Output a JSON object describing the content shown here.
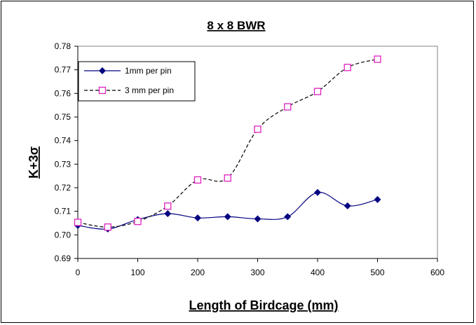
{
  "chart_data": {
    "type": "line",
    "title": "8 x 8 BWR",
    "xlabel": "Length of Birdcage (mm)",
    "ylabel": "K+3σ",
    "xlim": [
      0,
      600
    ],
    "ylim": [
      0.69,
      0.78
    ],
    "x_ticks": [
      "0",
      "100",
      "200",
      "300",
      "400",
      "500",
      "600"
    ],
    "y_ticks": [
      "0.69",
      "0.70",
      "0.71",
      "0.72",
      "0.73",
      "0.74",
      "0.75",
      "0.76",
      "0.77",
      "0.78"
    ],
    "x": [
      0,
      50,
      100,
      150,
      200,
      250,
      300,
      350,
      400,
      450,
      500
    ],
    "legend_position": "top-left",
    "grid": false,
    "series": [
      {
        "name": "1mm per pin",
        "color": "#000080",
        "line_style": "solid",
        "marker": "diamond",
        "values": [
          0.704,
          0.7025,
          0.7065,
          0.709,
          0.7072,
          0.7077,
          0.7068,
          0.7077,
          0.718,
          0.7123,
          0.715
        ]
      },
      {
        "name": "3 mm per pin",
        "color": "#000000",
        "marker_color": "#e020c0",
        "line_style": "dashed",
        "marker": "square",
        "values": [
          0.7053,
          0.7033,
          0.7057,
          0.7122,
          0.7233,
          0.7241,
          0.7448,
          0.7543,
          0.7608,
          0.771,
          0.7745
        ]
      }
    ]
  }
}
